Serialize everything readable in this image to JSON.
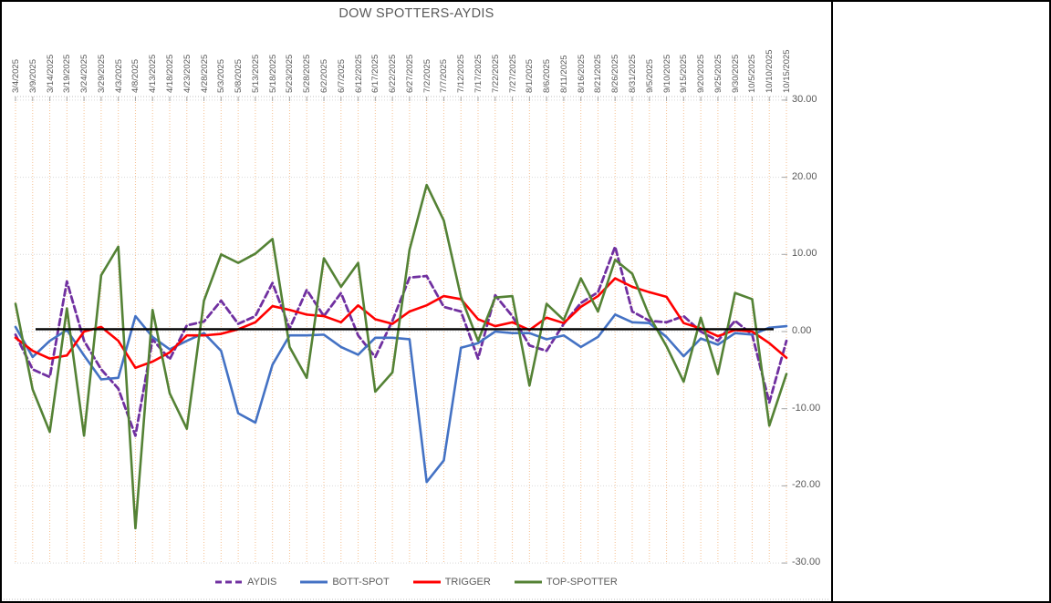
{
  "chart": {
    "title": "DOW SPOTTERS-AYDIS",
    "y_axis_labels": [
      "30.00",
      "20.00",
      "10.00",
      "0.00",
      "-10.00",
      "-20.00",
      "-30.00"
    ],
    "colors": {
      "vertical_grid": "#F5BE8E",
      "horizontal_grid": "#D9D9D9",
      "axis_tick": "#A6A6A6",
      "label_text": "#595959",
      "zero_line": "#000000"
    }
  },
  "chart_data": {
    "type": "line",
    "title": "DOW SPOTTERS-AYDIS",
    "ylim": [
      -30,
      30
    ],
    "y_ticks": [
      30,
      20,
      10,
      0,
      -10,
      -20,
      -30
    ],
    "grid": "both",
    "legend_position": "bottom",
    "zero_line_value": 0.3,
    "categories": [
      "3/4/2025",
      "3/9/2025",
      "3/14/2025",
      "3/19/2025",
      "3/24/2025",
      "3/29/2025",
      "4/3/2025",
      "4/8/2025",
      "4/13/2025",
      "4/18/2025",
      "4/23/2025",
      "4/28/2025",
      "5/3/2025",
      "5/8/2025",
      "5/13/2025",
      "5/18/2025",
      "5/23/2025",
      "5/28/2025",
      "6/2/2025",
      "6/7/2025",
      "6/12/2025",
      "6/17/2025",
      "6/22/2025",
      "6/27/2025",
      "7/2/2025",
      "7/7/2025",
      "7/12/2025",
      "7/17/2025",
      "7/22/2025",
      "7/27/2025",
      "8/1/2025",
      "8/6/2025",
      "8/11/2025",
      "8/16/2025",
      "8/21/2025",
      "8/26/2025",
      "8/31/2025",
      "9/5/2025",
      "9/10/2025",
      "9/15/2025",
      "9/20/2025",
      "9/25/2025",
      "9/30/2025",
      "10/5/2025",
      "10/10/2025",
      "10/15/2025"
    ],
    "series": [
      {
        "name": "AYDIS",
        "color": "#7030A0",
        "style": "dashed",
        "values": [
          -0.4,
          -4.9,
          -5.9,
          6.5,
          -1.2,
          -4.9,
          -7.4,
          -13.5,
          -1.0,
          -3.6,
          0.8,
          1.3,
          4.0,
          1.0,
          2.0,
          6.3,
          0.4,
          5.4,
          2.0,
          5.0,
          -0.5,
          -3.3,
          1.4,
          7.0,
          7.2,
          3.2,
          2.6,
          -3.5,
          4.7,
          2.0,
          -1.8,
          -2.5,
          1.0,
          3.7,
          5.1,
          11.0,
          2.6,
          1.4,
          1.2,
          2.0,
          0.0,
          -1.2,
          1.4,
          -0.4,
          -9.2,
          -1.2
        ]
      },
      {
        "name": "BOTT-SPOT",
        "color": "#4472C4",
        "style": "solid",
        "values": [
          0.6,
          -3.3,
          -1.2,
          0.2,
          -3.1,
          -6.2,
          -6.0,
          2.0,
          -0.7,
          -2.3,
          -1.2,
          -0.2,
          -2.5,
          -10.6,
          -11.8,
          -4.3,
          -0.5,
          -0.5,
          -0.4,
          -2.0,
          -3.0,
          -0.8,
          -0.8,
          -1.0,
          -19.5,
          -16.7,
          -2.1,
          -1.5,
          0.0,
          -0.2,
          -0.2,
          -1.0,
          -0.5,
          -2.0,
          -0.7,
          2.2,
          1.2,
          1.1,
          -0.7,
          -3.2,
          -0.9,
          -1.7,
          -0.2,
          -0.4,
          0.5,
          0.7
        ]
      },
      {
        "name": "TRIGGER",
        "color": "#FF0000",
        "style": "solid",
        "values": [
          -0.8,
          -2.5,
          -3.5,
          -3.1,
          0.0,
          0.6,
          -1.2,
          -4.7,
          -3.9,
          -2.7,
          -0.5,
          -0.5,
          -0.3,
          0.3,
          1.2,
          3.3,
          2.8,
          2.2,
          2.0,
          1.2,
          3.4,
          1.6,
          1.0,
          2.6,
          3.4,
          4.6,
          4.2,
          1.6,
          0.7,
          1.2,
          0.2,
          1.8,
          1.1,
          3.2,
          4.6,
          6.9,
          5.8,
          5.1,
          4.5,
          1.1,
          0.4,
          -0.6,
          0.2,
          0.0,
          -1.5,
          -3.4
        ]
      },
      {
        "name": "TOP-SPOTTER",
        "color": "#548235",
        "style": "solid",
        "values": [
          3.6,
          -7.5,
          -13.0,
          3.0,
          -13.5,
          7.3,
          11.0,
          -25.5,
          2.8,
          -8.0,
          -12.6,
          4.0,
          10.0,
          8.9,
          10.1,
          12.0,
          -2.0,
          -6.0,
          9.5,
          5.8,
          8.9,
          -7.8,
          -5.3,
          10.6,
          19.0,
          14.4,
          4.5,
          -1.2,
          4.4,
          4.6,
          -7.0,
          3.6,
          1.5,
          6.9,
          2.6,
          9.3,
          7.5,
          2.0,
          -1.9,
          -6.5,
          1.8,
          -5.5,
          5.0,
          4.2,
          -12.2,
          -5.5
        ]
      }
    ]
  }
}
